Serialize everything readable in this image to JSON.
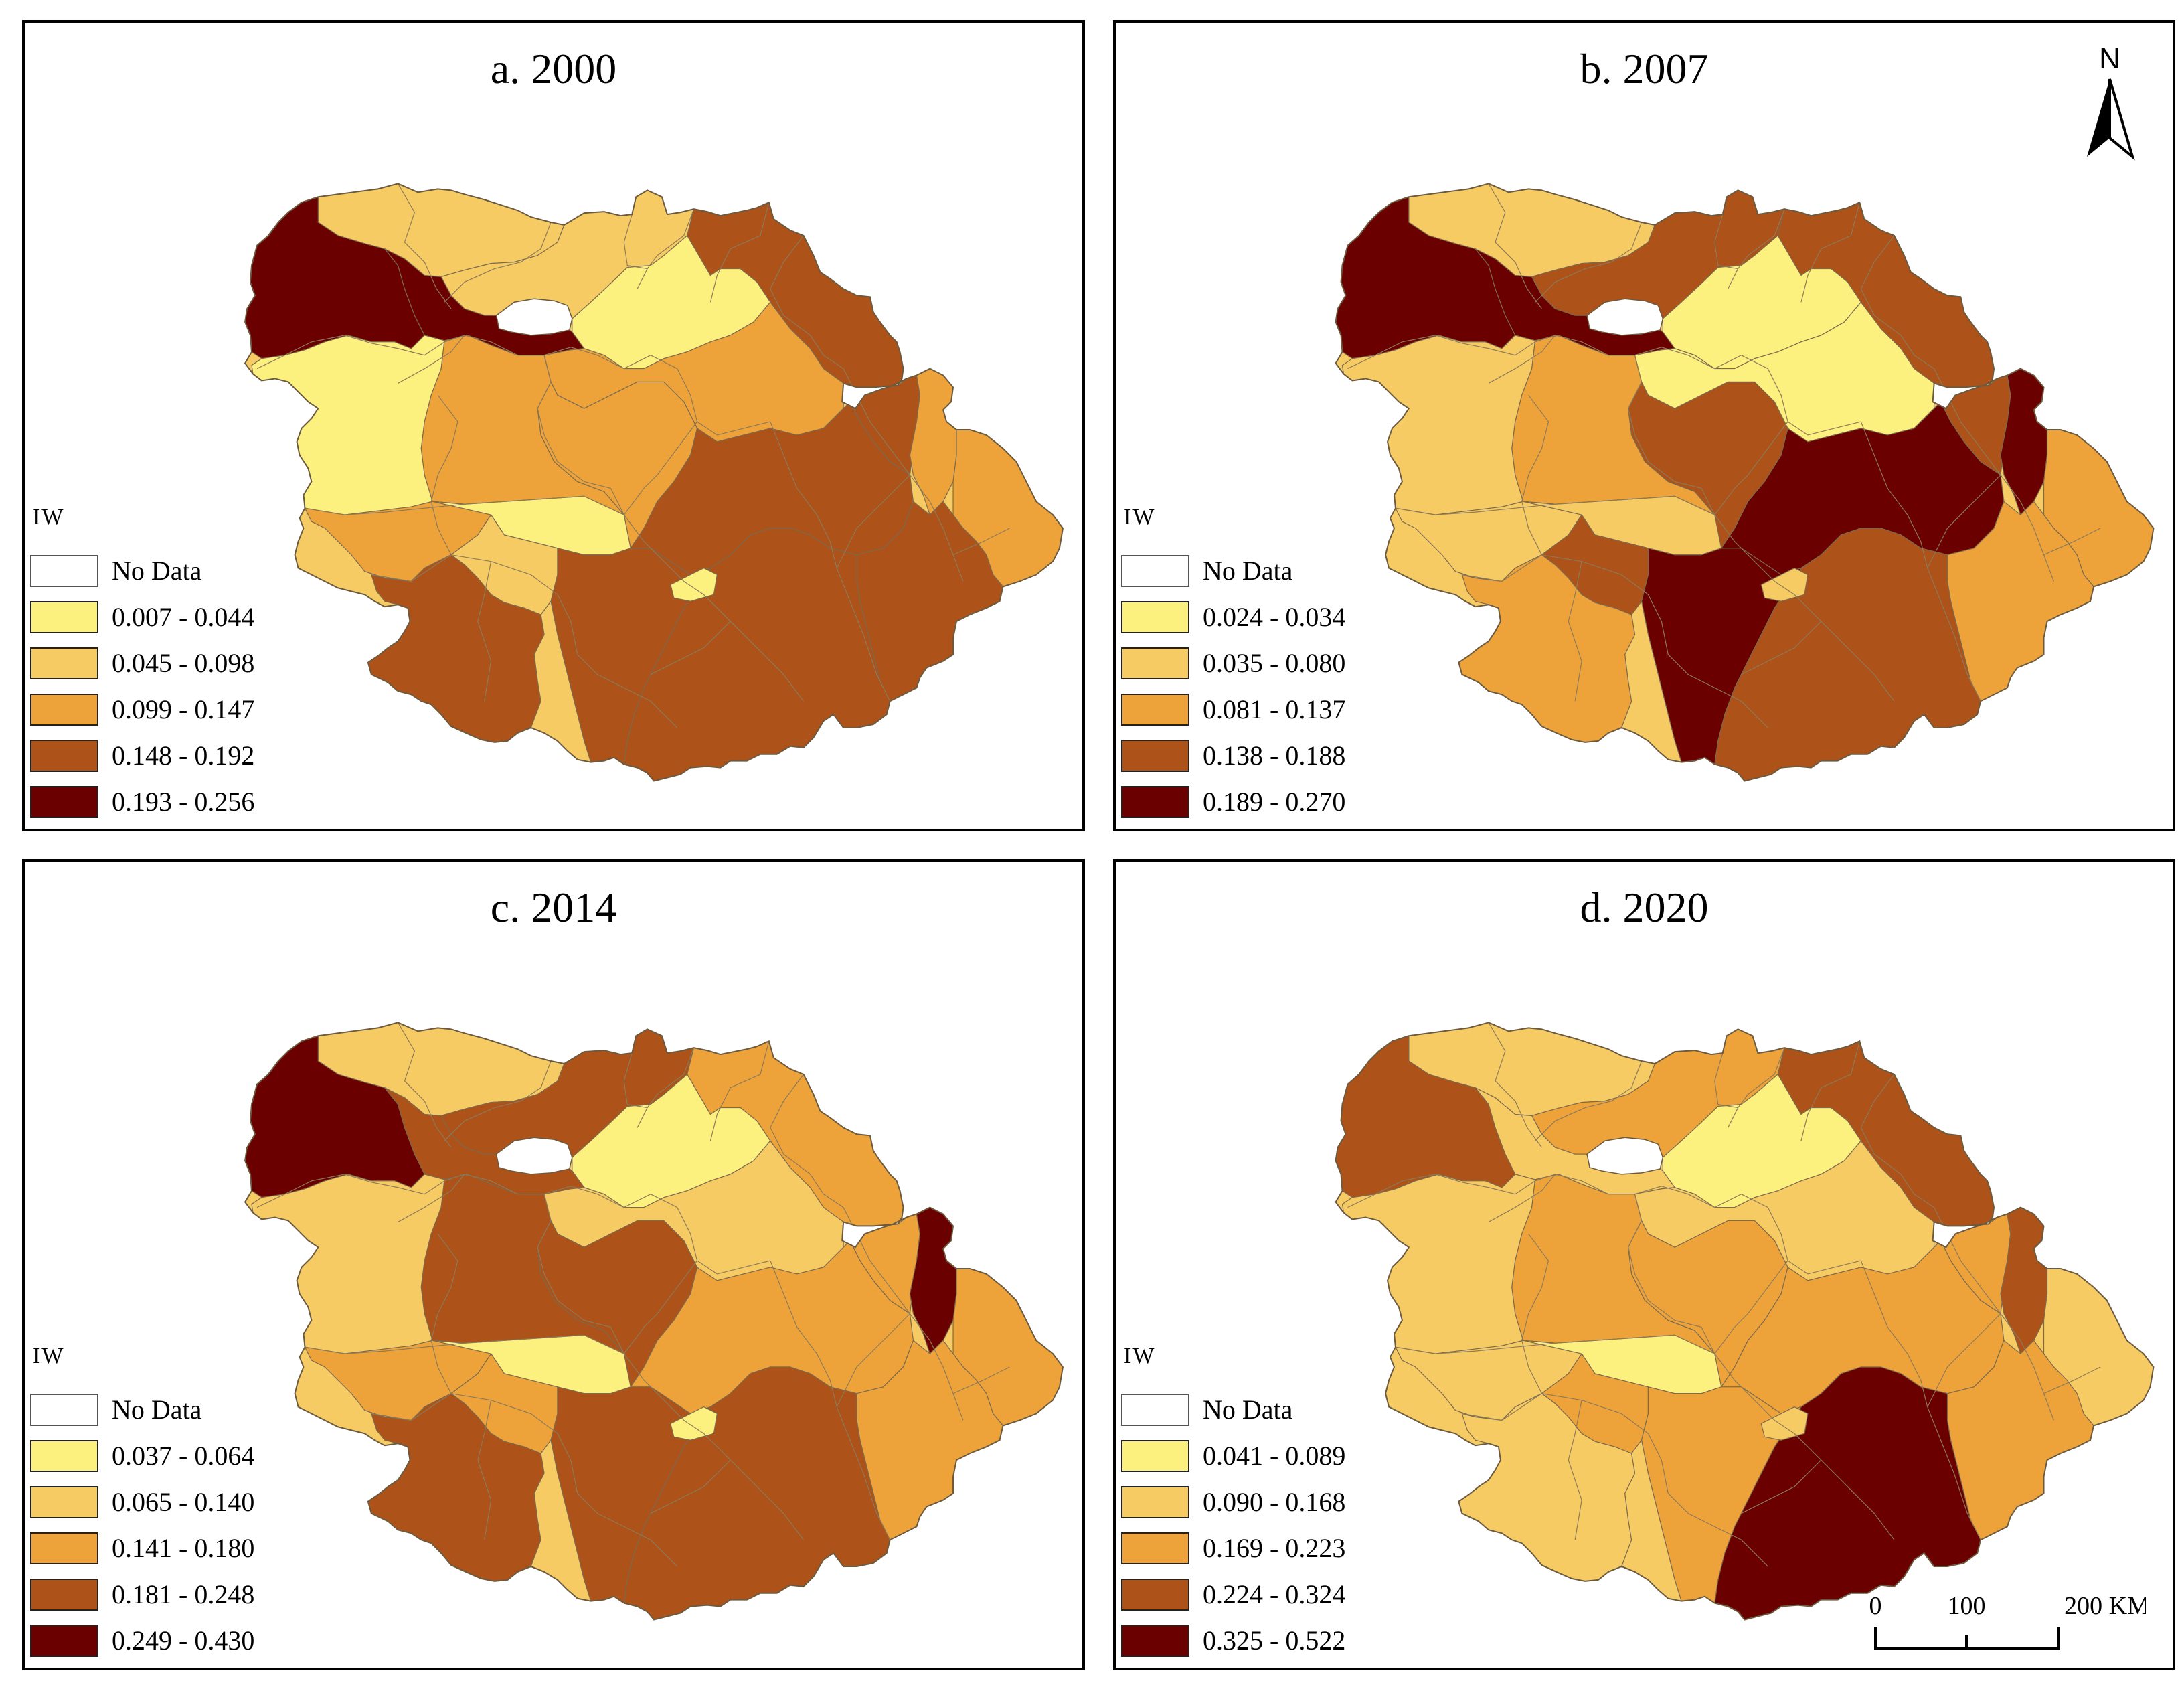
{
  "figure": {
    "panels": [
      {
        "title": "a. 2000",
        "legend_title": "IW",
        "no_data_label": "No Data",
        "classes": [
          {
            "label": "0.007 - 0.044",
            "color": "#FCF07E"
          },
          {
            "label": "0.045 - 0.098",
            "color": "#F7CB63"
          },
          {
            "label": "0.099 - 0.147",
            "color": "#EDA33A"
          },
          {
            "label": "0.148 - 0.192",
            "color": "#AD5218"
          },
          {
            "label": "0.193 - 0.256",
            "color": "#6B0000"
          }
        ]
      },
      {
        "title": "b. 2007",
        "legend_title": "IW",
        "no_data_label": "No Data",
        "classes": [
          {
            "label": "0.024 - 0.034",
            "color": "#FCF07E"
          },
          {
            "label": "0.035 - 0.080",
            "color": "#F7CB63"
          },
          {
            "label": "0.081 - 0.137",
            "color": "#EDA33A"
          },
          {
            "label": "0.138 - 0.188",
            "color": "#AD5218"
          },
          {
            "label": "0.189 - 0.270",
            "color": "#6B0000"
          }
        ]
      },
      {
        "title": "c. 2014",
        "legend_title": "IW",
        "no_data_label": "No Data",
        "classes": [
          {
            "label": "0.037 - 0.064",
            "color": "#FCF07E"
          },
          {
            "label": "0.065 - 0.140",
            "color": "#F7CB63"
          },
          {
            "label": "0.141 - 0.180",
            "color": "#EDA33A"
          },
          {
            "label": "0.181 - 0.248",
            "color": "#AD5218"
          },
          {
            "label": "0.249 - 0.430",
            "color": "#6B0000"
          }
        ]
      },
      {
        "title": "d. 2020",
        "legend_title": "IW",
        "no_data_label": "No Data",
        "classes": [
          {
            "label": "0.041 - 0.089",
            "color": "#FCF07E"
          },
          {
            "label": "0.090 - 0.168",
            "color": "#F7CB63"
          },
          {
            "label": "0.169 - 0.223",
            "color": "#EDA33A"
          },
          {
            "label": "0.224 - 0.324",
            "color": "#AD5218"
          },
          {
            "label": "0.325 - 0.522",
            "color": "#6B0000"
          }
        ]
      }
    ],
    "north_arrow_label": "N",
    "scale_bar": {
      "labels": [
        "0",
        "100",
        "200 KM"
      ]
    }
  }
}
